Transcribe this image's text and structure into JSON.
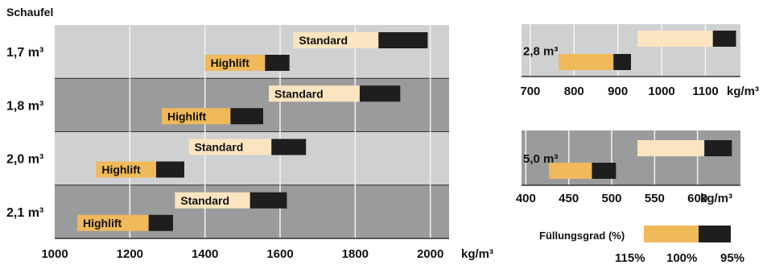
{
  "colors": {
    "band_light": "#cfd0d1",
    "band_dark": "#9a9b9c",
    "grid": "#f4f4f4",
    "axis": "#333333",
    "fill_115": "#f0b95a",
    "fill_100": "#fbe4c0",
    "fill_95": "#1e1e1e"
  },
  "chart_data": [
    {
      "type": "bar",
      "orientation": "horizontal-range",
      "header": "Schaufel",
      "xlabel": "kg/m³",
      "xlim": [
        1000,
        2050
      ],
      "xticks": [
        1000,
        1200,
        1400,
        1600,
        1800,
        2000
      ],
      "groups": [
        {
          "label": "1,7 m³",
          "band": "light",
          "bars": [
            {
              "name": "Standard",
              "start": 1635,
              "mid": 1862,
              "end": 1993
            },
            {
              "name": "Highlift",
              "start": 1400,
              "mid": 1560,
              "end": 1625
            }
          ]
        },
        {
          "label": "1,8 m³",
          "band": "dark",
          "bars": [
            {
              "name": "Standard",
              "start": 1570,
              "mid": 1812,
              "end": 1920
            },
            {
              "name": "Highlift",
              "start": 1285,
              "mid": 1468,
              "end": 1555
            }
          ]
        },
        {
          "label": "2,0 m³",
          "band": "light",
          "bars": [
            {
              "name": "Standard",
              "start": 1357,
              "mid": 1577,
              "end": 1669
            },
            {
              "name": "Highlift",
              "start": 1110,
              "mid": 1270,
              "end": 1345
            }
          ]
        },
        {
          "label": "2,1 m³",
          "band": "dark",
          "bars": [
            {
              "name": "Standard",
              "start": 1320,
              "mid": 1520,
              "end": 1618
            },
            {
              "name": "Highlift",
              "start": 1060,
              "mid": 1250,
              "end": 1315
            }
          ]
        }
      ]
    },
    {
      "type": "bar",
      "orientation": "horizontal-range",
      "xlabel": "kg/m³",
      "xlim": [
        680,
        1180
      ],
      "xticks": [
        700,
        800,
        900,
        1000,
        1100
      ],
      "groups": [
        {
          "label": "2,8 m³",
          "band": "light",
          "bars": [
            {
              "name": "",
              "start": 945,
              "mid": 1117,
              "end": 1170
            },
            {
              "name": "",
              "start": 765,
              "mid": 890,
              "end": 930
            }
          ]
        }
      ]
    },
    {
      "type": "bar",
      "orientation": "horizontal-range",
      "xlabel": "kg/m³",
      "xlim": [
        395,
        650
      ],
      "xticks": [
        400,
        450,
        500,
        550,
        600
      ],
      "groups": [
        {
          "label": "5,0 m³",
          "band": "dark",
          "bars": [
            {
              "name": "",
              "start": 530,
              "mid": 608,
              "end": 640
            },
            {
              "name": "",
              "start": 427,
              "mid": 477,
              "end": 505
            }
          ]
        }
      ]
    }
  ],
  "legend": {
    "title": "Füllungsgrad (%)",
    "labels": [
      "115%",
      "100%",
      "95%"
    ]
  }
}
